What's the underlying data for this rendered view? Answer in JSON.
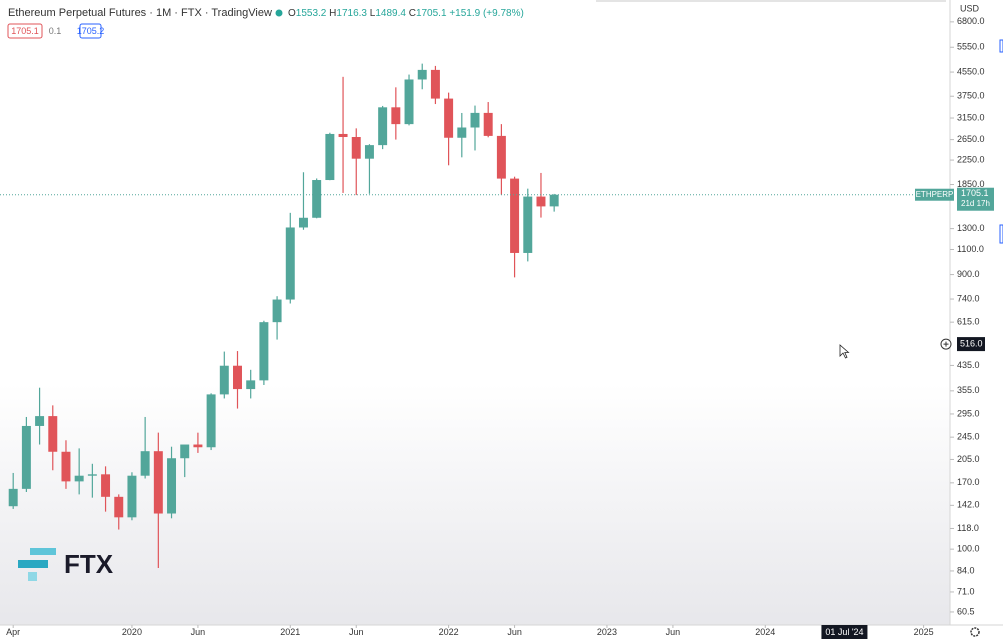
{
  "chart_data": {
    "type": "candlestick",
    "title": "Ethereum Perpetual Futures · 1M · FTX · TradingView",
    "ohlc_prefixes": [
      "O",
      "H",
      "L",
      "C"
    ],
    "change_label": "+151.9 (+9.78%)",
    "order_panel": {
      "sell": "1705.1",
      "spread": "0.1",
      "buy": "1705.2"
    },
    "currency": "USD",
    "symbol_label": "ETHPERP",
    "countdown": "21d 17h",
    "watermark": "FTX",
    "log_scale": true,
    "grid": false,
    "up_color": "#52a69a",
    "down_color": "#e05459",
    "x": [
      "2019-04",
      "2019-05",
      "2019-06",
      "2019-07",
      "2019-08",
      "2019-09",
      "2019-10",
      "2019-11",
      "2019-12",
      "2020-01",
      "2020-02",
      "2020-03",
      "2020-04",
      "2020-05",
      "2020-06",
      "2020-07",
      "2020-08",
      "2020-09",
      "2020-10",
      "2020-11",
      "2020-12",
      "2021-01",
      "2021-02",
      "2021-03",
      "2021-04",
      "2021-05",
      "2021-06",
      "2021-07",
      "2021-08",
      "2021-09",
      "2021-10",
      "2021-11",
      "2021-12",
      "2022-01",
      "2022-02",
      "2022-03",
      "2022-04",
      "2022-05",
      "2022-06",
      "2022-07",
      "2022-08",
      "2022-09"
    ],
    "open": [
      141,
      162,
      268,
      290,
      218,
      172,
      180,
      182,
      152,
      129,
      180,
      219,
      133,
      207,
      231,
      226,
      345,
      434,
      360,
      386,
      615,
      737,
      1312,
      1418,
      1918,
      2773,
      2706,
      2275,
      2536,
      3432,
      3000,
      4288,
      4630,
      3680,
      2690,
      2920,
      3282,
      2730,
      1940,
      1070,
      1680,
      1553.2
    ],
    "high": [
      184,
      288,
      364,
      316,
      239,
      224,
      198,
      194,
      155,
      185,
      288,
      254,
      227,
      228,
      254,
      348,
      486,
      488,
      420,
      622,
      757,
      1475,
      2041,
      1942,
      2800,
      4380,
      2900,
      2555,
      3470,
      4027,
      4460,
      4868,
      4780,
      3860,
      3280,
      3480,
      3580,
      3000,
      1970,
      1790,
      2030,
      1716.3
    ],
    "low": [
      138,
      158,
      231,
      188,
      162,
      155,
      151,
      135,
      117,
      126,
      176,
      86,
      128,
      178,
      216,
      221,
      334,
      308,
      334,
      372,
      535,
      714,
      1288,
      1412,
      1915,
      1730,
      1700,
      1718,
      2456,
      2651,
      2970,
      3965,
      3523,
      2158,
      2300,
      2430,
      2700,
      1705,
      880,
      1000,
      1420,
      1489.4
    ],
    "close": [
      162,
      268,
      290,
      218,
      172,
      180,
      182,
      152,
      129,
      180,
      219,
      133,
      207,
      231,
      226,
      345,
      434,
      360,
      386,
      615,
      737,
      1312,
      1418,
      1918,
      2773,
      2706,
      2275,
      2536,
      3432,
      3000,
      4288,
      4630,
      3680,
      2690,
      2920,
      3282,
      2730,
      1940,
      1070,
      1680,
      1553,
      1705.1
    ],
    "xlim": [
      "2019-03",
      "2025-03"
    ],
    "xticks": [
      {
        "value": "2019-04",
        "label": "Apr"
      },
      {
        "value": "2020-01",
        "label": "2020"
      },
      {
        "value": "2020-06",
        "label": "Jun"
      },
      {
        "value": "2021-01",
        "label": "2021"
      },
      {
        "value": "2021-06",
        "label": "Jun"
      },
      {
        "value": "2022-01",
        "label": "2022"
      },
      {
        "value": "2022-06",
        "label": "Jun"
      },
      {
        "value": "2023-01",
        "label": "2023"
      },
      {
        "value": "2023-06",
        "label": "Jun"
      },
      {
        "value": "2024-01",
        "label": "2024"
      },
      {
        "value": "2025-01",
        "label": "2025"
      }
    ],
    "ylim": [
      54.5,
      8100
    ],
    "yticks": [
      {
        "value": 6800,
        "label": "6800.0"
      },
      {
        "value": 5550,
        "label": "5550.0"
      },
      {
        "value": 4550,
        "label": "4550.0"
      },
      {
        "value": 3750,
        "label": "3750.0"
      },
      {
        "value": 3150,
        "label": "3150.0"
      },
      {
        "value": 2650,
        "label": "2650.0"
      },
      {
        "value": 2250,
        "label": "2250.0"
      },
      {
        "value": 1850,
        "label": "1850.0"
      },
      {
        "value": 1300,
        "label": "1300.0"
      },
      {
        "value": 1100,
        "label": "1100.0"
      },
      {
        "value": 900,
        "label": "900.0"
      },
      {
        "value": 740,
        "label": "740.0"
      },
      {
        "value": 615,
        "label": "615.0"
      },
      {
        "value": 435,
        "label": "435.0"
      },
      {
        "value": 355,
        "label": "355.0"
      },
      {
        "value": 295,
        "label": "295.0"
      },
      {
        "value": 245,
        "label": "245.0"
      },
      {
        "value": 205,
        "label": "205.0"
      },
      {
        "value": 170,
        "label": "170.0"
      },
      {
        "value": 142,
        "label": "142.0"
      },
      {
        "value": 118,
        "label": "118.0"
      },
      {
        "value": 100,
        "label": "100.0"
      },
      {
        "value": 84,
        "label": "84.0"
      },
      {
        "value": 71,
        "label": "71.0"
      },
      {
        "value": 60.5,
        "label": "60.5"
      }
    ],
    "crosshair": {
      "date": "2024-07",
      "date_label": "01 Jul '24",
      "price": 516,
      "price_label": "516.0"
    }
  }
}
